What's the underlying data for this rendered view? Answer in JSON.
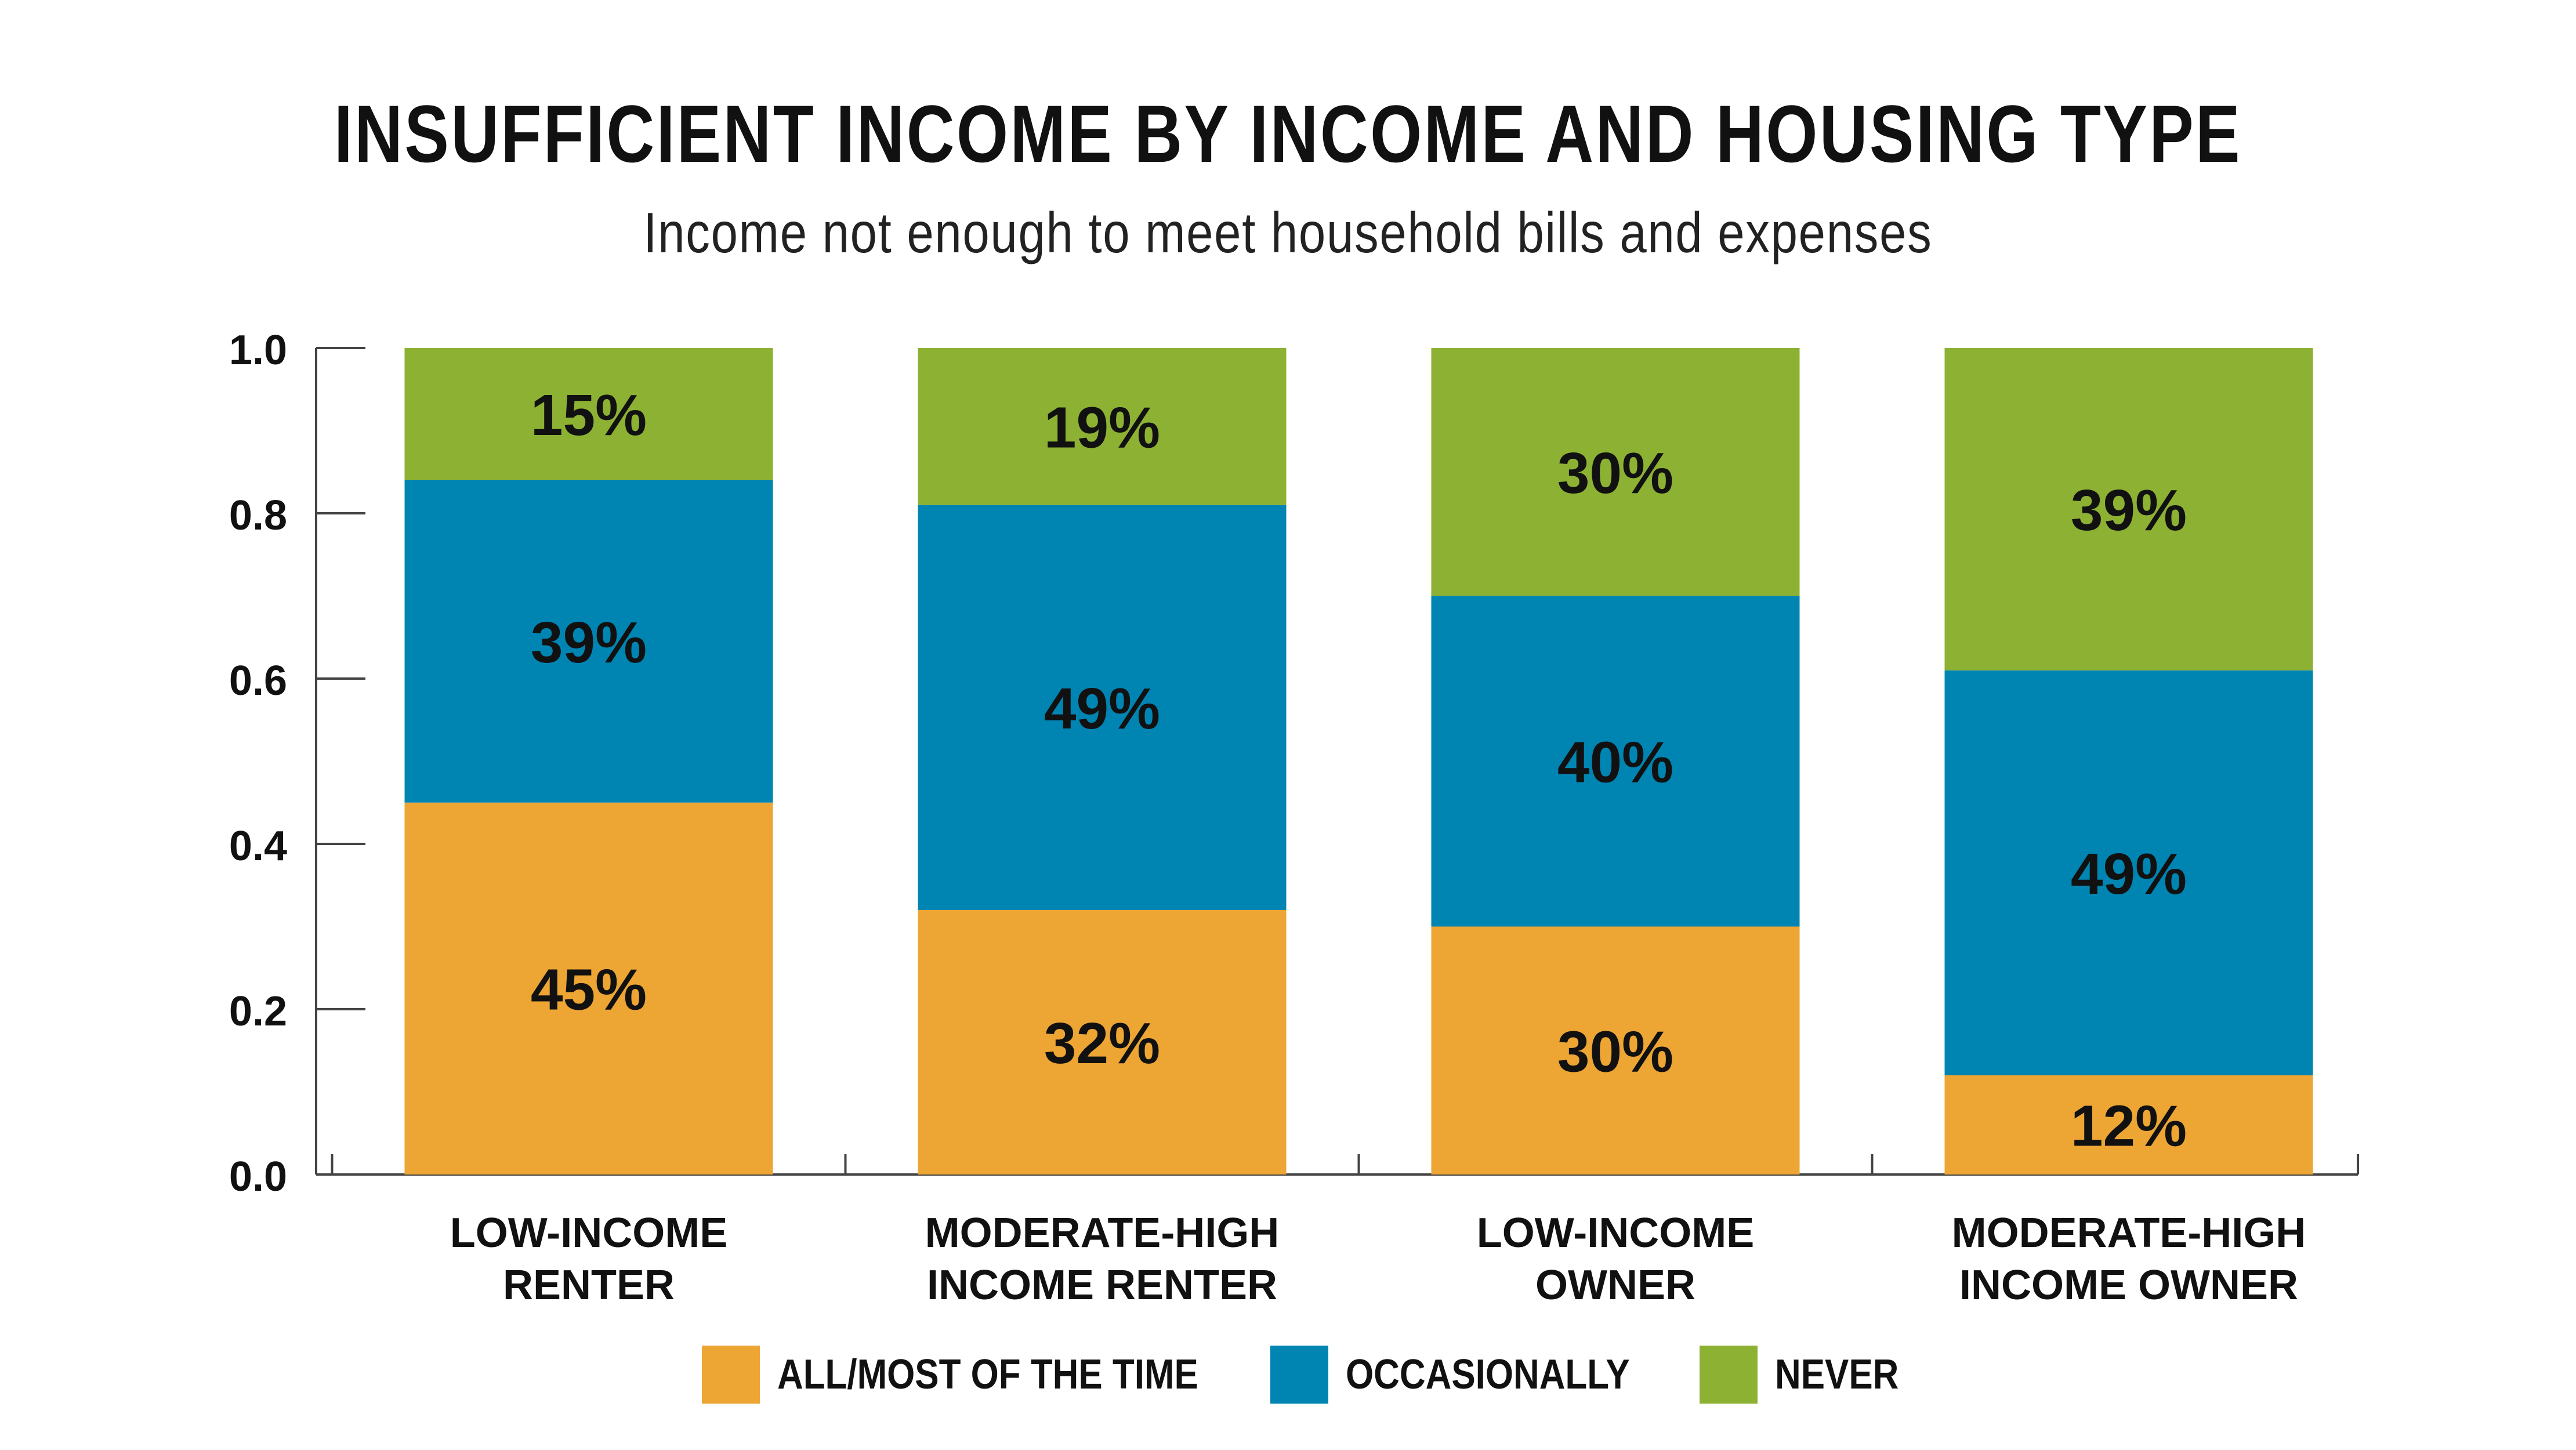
{
  "title": "INSUFFICIENT INCOME BY INCOME AND HOUSING TYPE",
  "subtitle": "Income not enough to meet household bills and expenses",
  "colors": {
    "all_most": "#EDA534",
    "occasionally": "#0085B3",
    "never": "#8DB233",
    "text": "#111111",
    "axis": "#444444"
  },
  "chart_data": {
    "type": "bar",
    "stacked": true,
    "title": "INSUFFICIENT INCOME BY INCOME AND HOUSING TYPE",
    "subtitle": "Income not enough to meet household bills and expenses",
    "xlabel": "",
    "ylabel": "",
    "ylim": [
      0.0,
      1.0
    ],
    "yticks": [
      "0.0",
      "0.2",
      "0.4",
      "0.6",
      "0.8",
      "1.0"
    ],
    "categories": [
      [
        "LOW-INCOME",
        "RENTER"
      ],
      [
        "MODERATE-HIGH",
        "INCOME RENTER"
      ],
      [
        "LOW-INCOME",
        "OWNER"
      ],
      [
        "MODERATE-HIGH",
        "INCOME OWNER"
      ]
    ],
    "series": [
      {
        "name": "ALL/MOST OF THE TIME",
        "color": "#EDA534",
        "values": [
          0.45,
          0.32,
          0.3,
          0.12
        ],
        "labels": [
          "45%",
          "32%",
          "30%",
          "12%"
        ]
      },
      {
        "name": "OCCASIONALLY",
        "color": "#0085B3",
        "values": [
          0.39,
          0.49,
          0.4,
          0.49
        ],
        "labels": [
          "39%",
          "49%",
          "40%",
          "49%"
        ]
      },
      {
        "name": "NEVER",
        "color": "#8DB233",
        "values": [
          0.15,
          0.19,
          0.3,
          0.39
        ],
        "labels": [
          "15%",
          "19%",
          "30%",
          "39%"
        ]
      }
    ],
    "grid": false,
    "legend_position": "bottom"
  }
}
